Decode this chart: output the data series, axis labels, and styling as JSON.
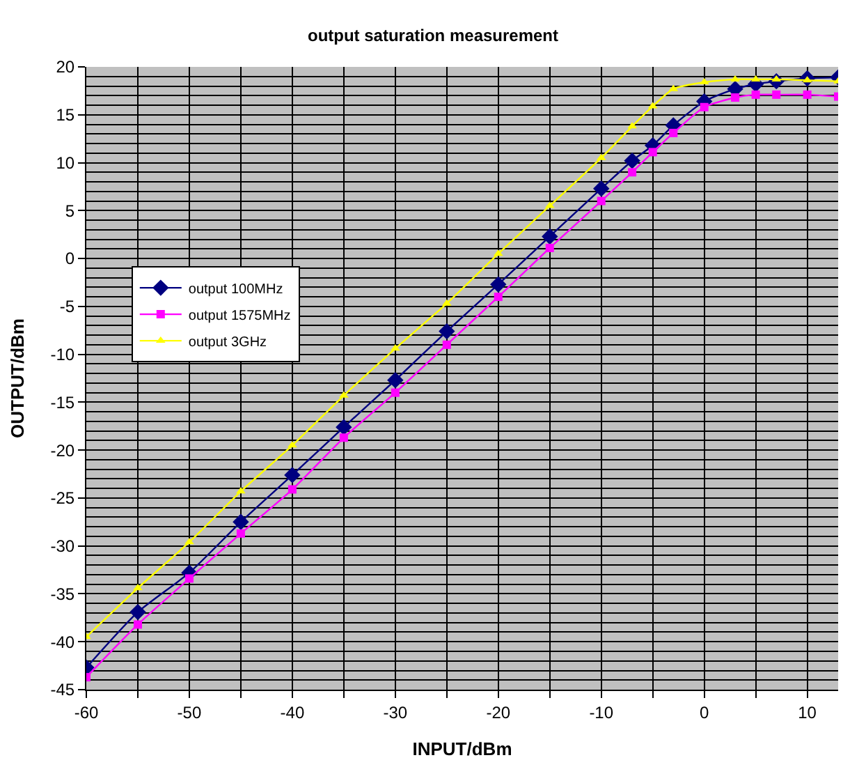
{
  "chart_data": {
    "type": "line",
    "title": "output saturation measurement",
    "xlabel": "INPUT/dBm",
    "ylabel": "OUTPUT/dBm",
    "x": [
      -60,
      -55,
      -50,
      -45,
      -40,
      -35,
      -30,
      -25,
      -20,
      -15,
      -10,
      -7,
      -5,
      -3,
      0,
      3,
      5,
      7,
      10,
      13
    ],
    "series": [
      {
        "name": "output 100MHz",
        "color": "#000080",
        "marker": "diamond",
        "values": [
          -42.7,
          -36.9,
          -32.8,
          -27.5,
          -22.6,
          -17.6,
          -12.7,
          -7.6,
          -2.7,
          2.3,
          7.3,
          10.2,
          11.8,
          13.9,
          16.4,
          17.7,
          18.2,
          18.5,
          18.8,
          18.9
        ]
      },
      {
        "name": "output 1575MHz",
        "color": "#ff00ff",
        "marker": "square",
        "values": [
          -43.7,
          -38.2,
          -33.4,
          -28.7,
          -24.1,
          -18.7,
          -14.0,
          -9.0,
          -4.0,
          1.1,
          6.0,
          9.0,
          11.1,
          13.1,
          15.8,
          16.8,
          17.1,
          17.1,
          17.1,
          16.9
        ]
      },
      {
        "name": "output 3GHz",
        "color": "#ffff00",
        "marker": "triangle",
        "values": [
          -39.5,
          -34.4,
          -29.6,
          -24.3,
          -19.5,
          -14.3,
          -9.4,
          -4.7,
          0.5,
          5.5,
          10.5,
          13.8,
          15.9,
          17.7,
          18.4,
          18.7,
          18.7,
          18.7,
          18.6,
          18.5
        ]
      }
    ],
    "xlim": [
      -60,
      13
    ],
    "xticks": [
      -60,
      {
        "value": -55,
        "label": null
      },
      -50,
      {
        "value": -45,
        "label": null
      },
      -40,
      {
        "value": -35,
        "label": null
      },
      -30,
      {
        "value": -25,
        "label": null
      },
      -20,
      {
        "value": -15,
        "label": null
      },
      -10,
      {
        "value": -5,
        "label": null
      },
      0,
      {
        "value": 5,
        "label": null
      },
      10
    ],
    "ylim": [
      -45,
      20
    ],
    "yticks": [
      -45,
      -40,
      -35,
      -30,
      -25,
      -20,
      -15,
      -10,
      -5,
      0,
      5,
      10,
      15,
      20
    ],
    "grid": true,
    "legend": "top left",
    "line_style": "solid"
  }
}
